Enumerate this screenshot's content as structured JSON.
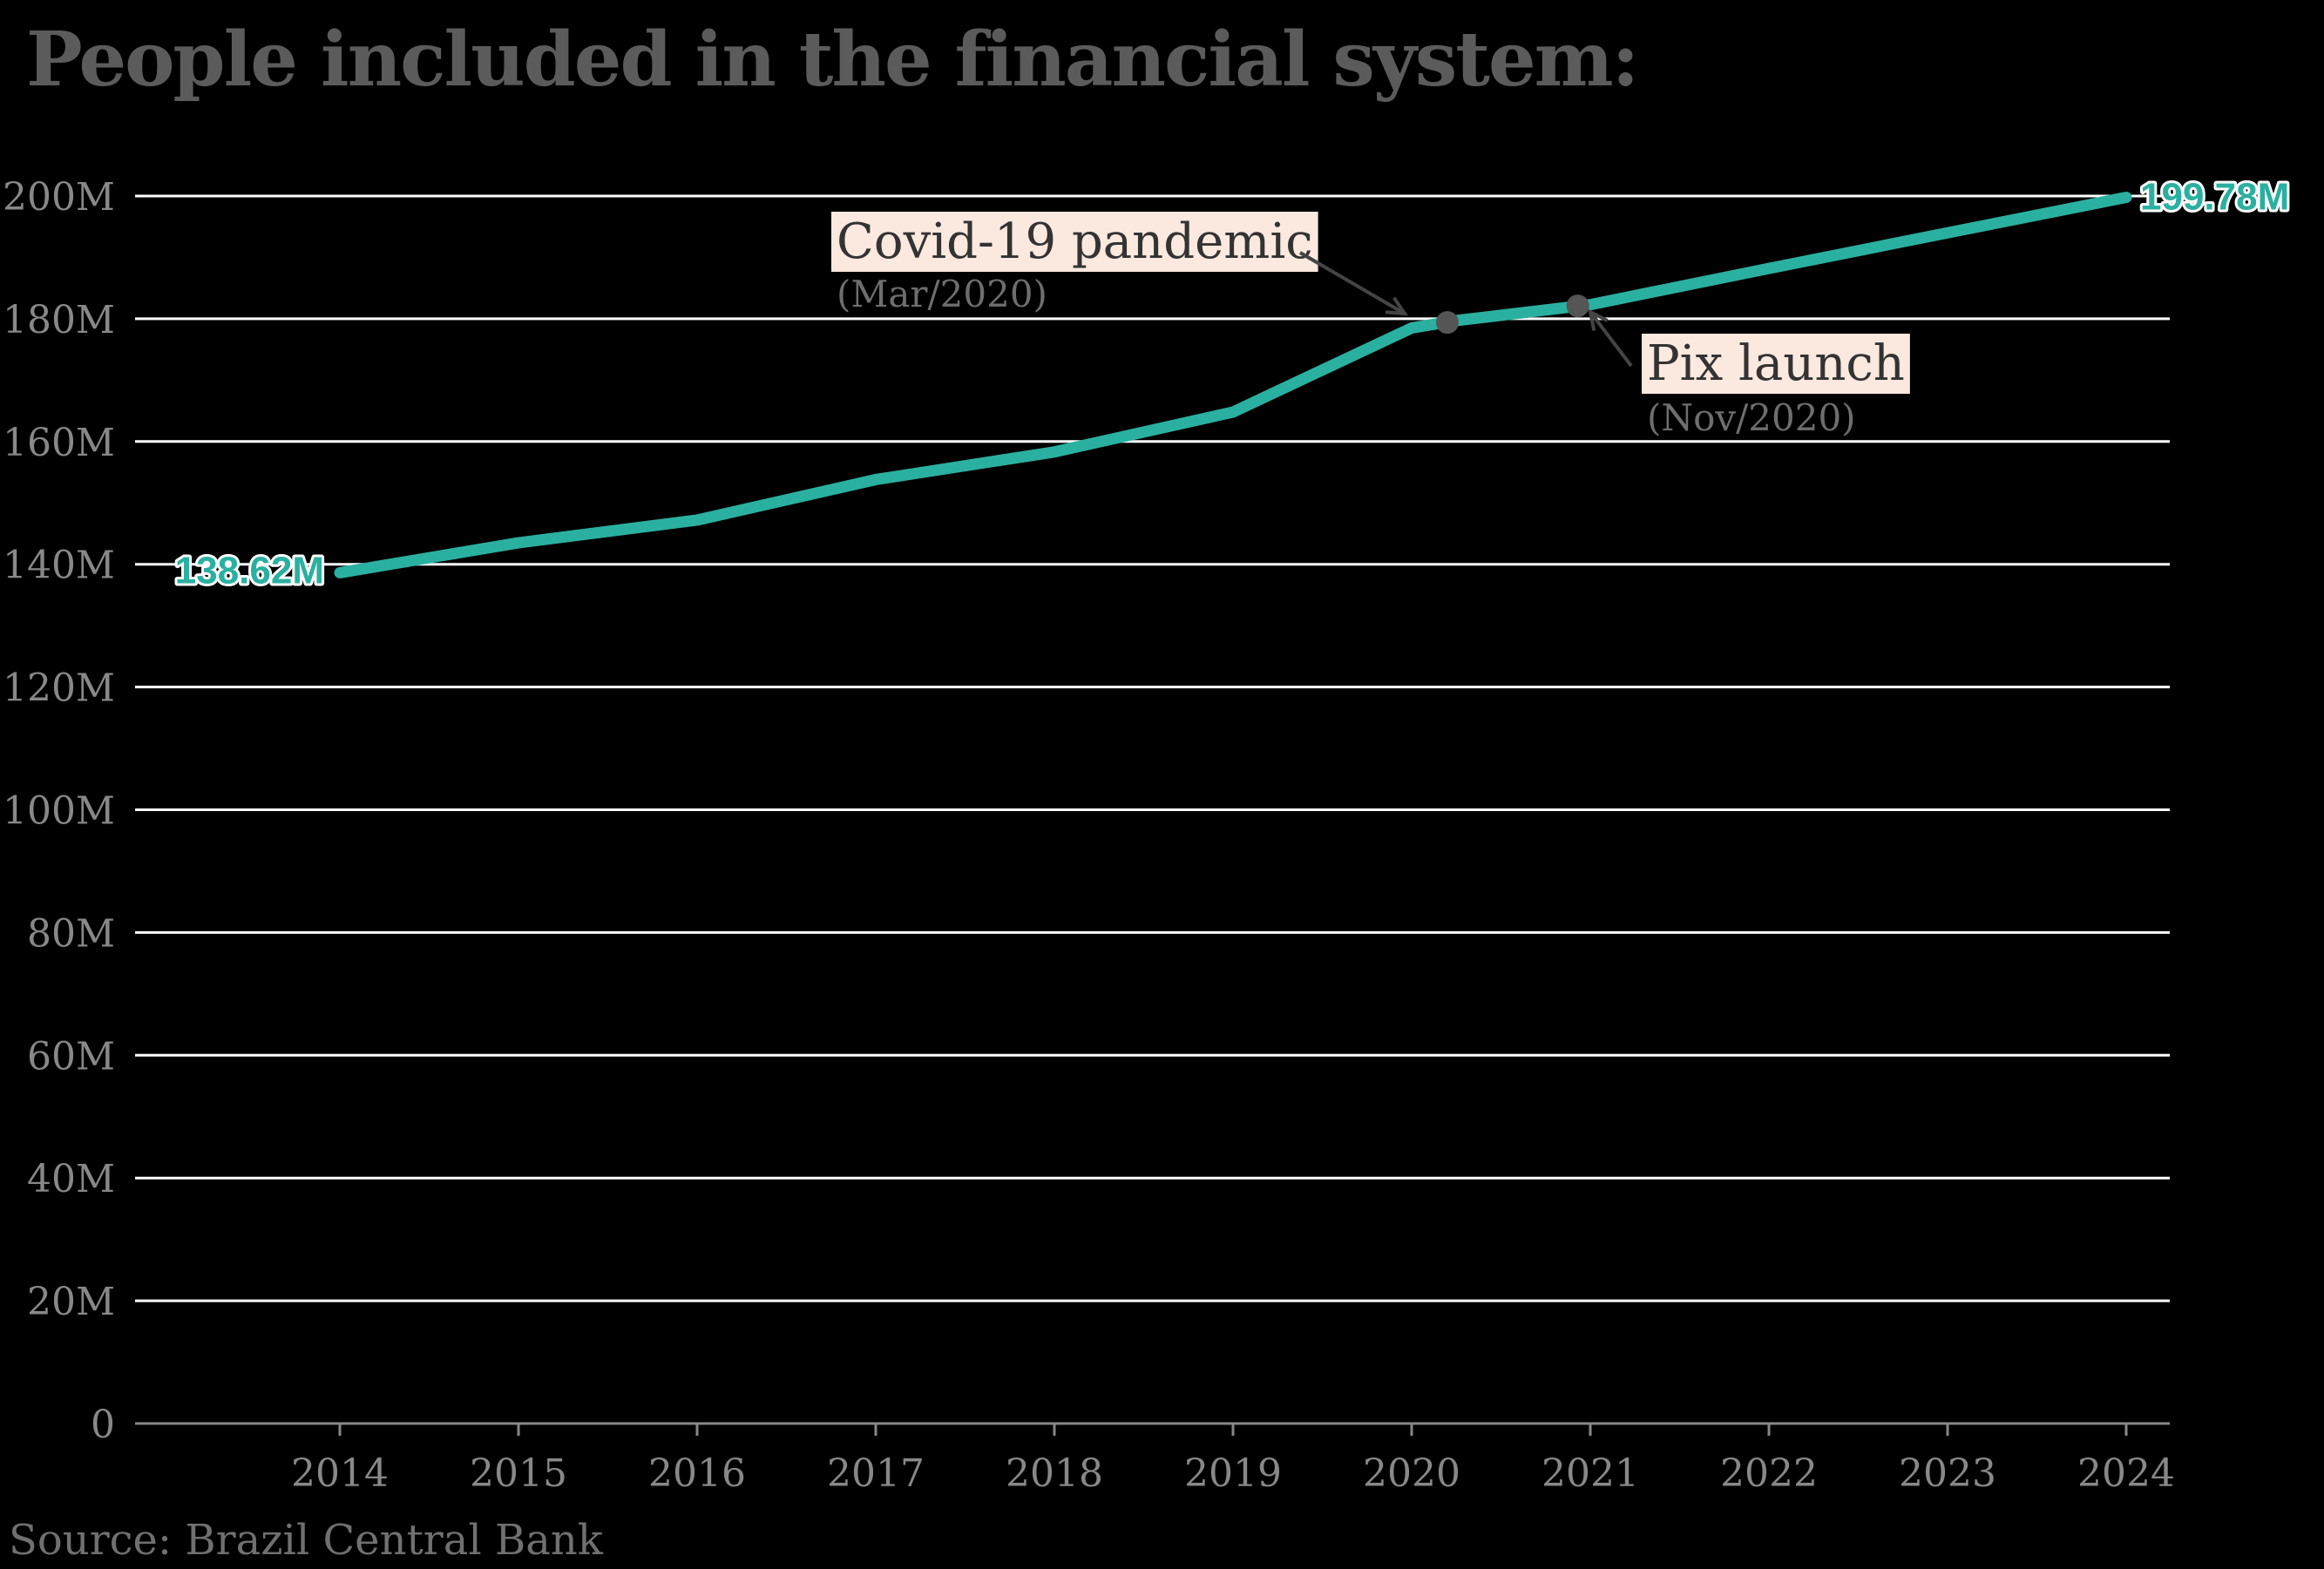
{
  "chart_data": {
    "type": "line",
    "title": "People included in the financial system:",
    "source": "Source: Brazil Central Bank",
    "xlabel": "",
    "ylabel": "",
    "x": [
      2014,
      2015,
      2016,
      2017,
      2018,
      2019,
      2020,
      2020.25,
      2021,
      2022,
      2023,
      2024
    ],
    "x_ticks": [
      "2014",
      "2015",
      "2016",
      "2017",
      "2018",
      "2019",
      "2020",
      "2021",
      "2022",
      "2023",
      "2024"
    ],
    "y_ticks": [
      "0",
      "20M",
      "40M",
      "60M",
      "80M",
      "100M",
      "120M",
      "140M",
      "160M",
      "180M",
      "200M"
    ],
    "ylim": [
      0,
      200
    ],
    "y_unit": "M",
    "grid": true,
    "series": [
      {
        "values": [
          138.62,
          143.5,
          147.2,
          153.8,
          158.3,
          164.8,
          178.5,
          179.7,
          182.3,
          188.2,
          194.0,
          199.78
        ],
        "color": "#2ab0a0"
      }
    ],
    "end_labels": {
      "start": "138.62M",
      "end": "199.78M"
    },
    "annotations": [
      {
        "label": "Covid-19 pandemic",
        "sublabel": "(Mar/2020)",
        "x": 2020.2,
        "y": 179.4
      },
      {
        "label": "Pix launch",
        "sublabel": "(Nov/2020)",
        "x": 2020.93,
        "y": 182.1
      }
    ]
  },
  "colors": {
    "background": "#000000",
    "line": "#2ab0a0",
    "grid": "#ffffff",
    "annotation_box": "#fbe8df",
    "marker": "#555555"
  }
}
